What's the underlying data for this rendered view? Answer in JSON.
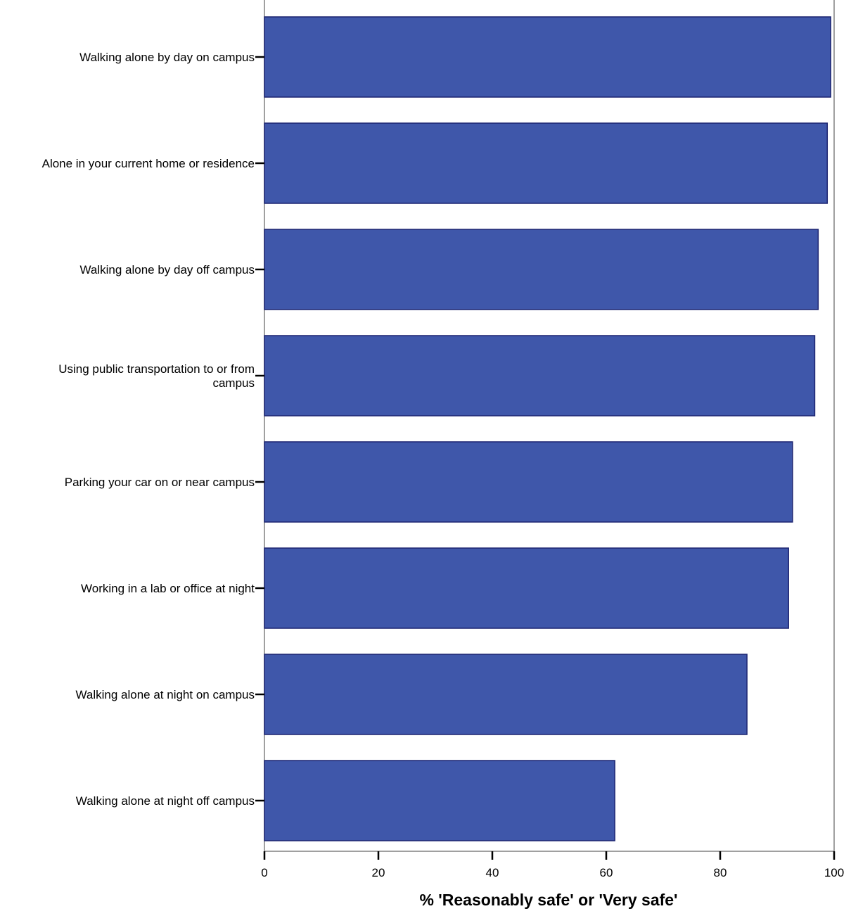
{
  "chart_data": {
    "type": "bar",
    "orientation": "horizontal",
    "title": "",
    "xlabel": "% 'Reasonably safe' or 'Very safe'",
    "ylabel": "",
    "xlim": [
      0,
      100
    ],
    "x_ticks": [
      0,
      20,
      40,
      60,
      80,
      100
    ],
    "grid": false,
    "categories": [
      "Walking alone by day on campus",
      "Alone in your current home or residence",
      "Walking alone by day off campus",
      "Using public transportation to or from campus",
      "Parking your car on or near campus",
      "Working in a lab or office at night",
      "Walking alone at night on campus",
      "Walking alone at night off campus"
    ],
    "category_lines": [
      [
        "Walking alone by day on campus"
      ],
      [
        "Alone in your current home or residence"
      ],
      [
        "Walking alone by day off campus"
      ],
      [
        "Using public transportation to or from",
        "campus"
      ],
      [
        "Parking your car on or near campus"
      ],
      [
        "Working in a lab or office at night"
      ],
      [
        "Walking alone at night on campus"
      ],
      [
        "Walking alone at night off campus"
      ]
    ],
    "values": [
      99.4,
      98.8,
      97.2,
      96.6,
      92.7,
      92.0,
      84.7,
      61.5
    ],
    "colors": {
      "bar_fill": "#3f57aa",
      "bar_stroke": "#1c2470",
      "axis": "#000000",
      "frame": "#808080"
    }
  }
}
